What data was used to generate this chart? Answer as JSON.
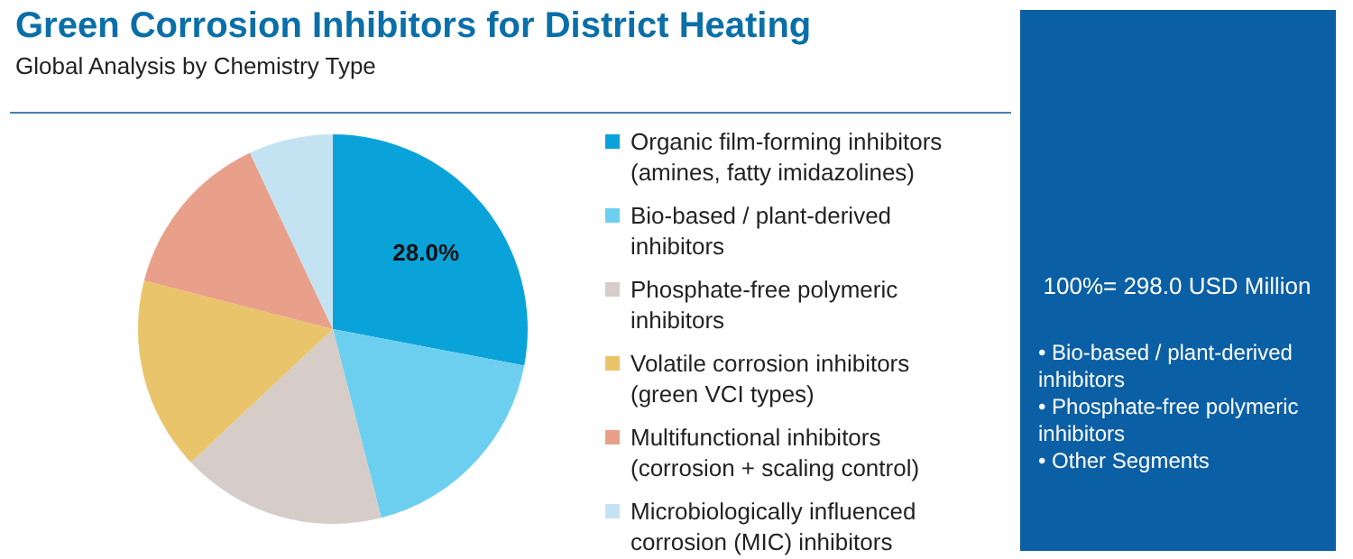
{
  "chart_data": {
    "type": "pie",
    "title": "Green Corrosion Inhibitors for District Heating",
    "subtitle": "Global Analysis by Chemistry Type",
    "categories": [
      "Organic film-forming inhibitors (amines, fatty imidazolines)",
      "Bio-based / plant-derived inhibitors",
      "Phosphate-free polymeric inhibitors",
      "Volatile corrosion inhibitors (green VCI types)",
      "Multifunctional inhibitors (corrosion + scaling control)",
      "Microbiologically influenced corrosion (MIC) inhibitors"
    ],
    "values": [
      28,
      18,
      17,
      16,
      14,
      7
    ],
    "colors": [
      "#0aa3d9",
      "#6dcff0",
      "#d6ccc8",
      "#e9c46a",
      "#e8a08a",
      "#c4e3f2"
    ],
    "value_labels": [
      "28.0%",
      null,
      null,
      null,
      null,
      null
    ],
    "legend": "right",
    "annotations": [
      "100%= 298.0 USD Million",
      "• Bio-based / plant-derived inhibitors",
      "• Phosphate-free polymeric inhibitors",
      "• Other Segments"
    ]
  }
}
